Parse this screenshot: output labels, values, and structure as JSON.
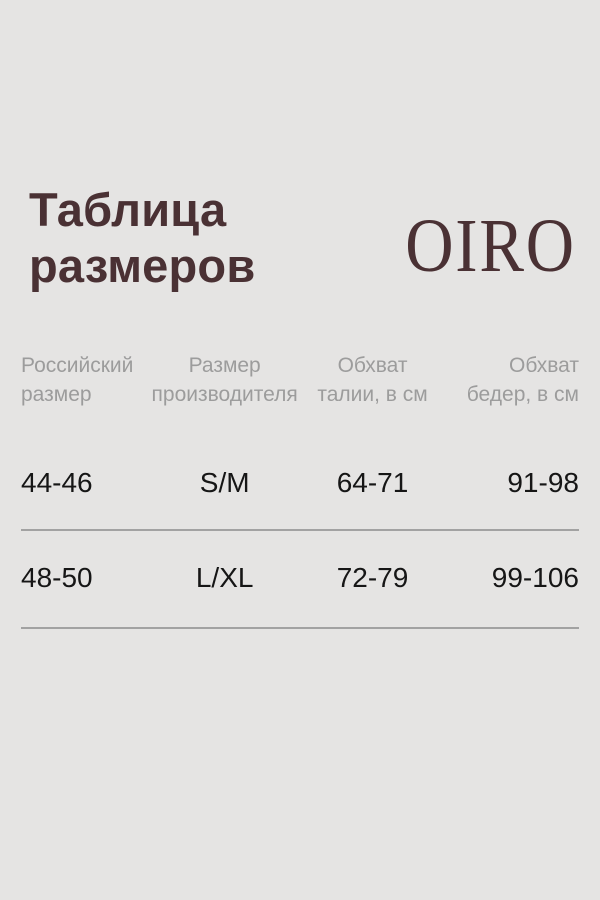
{
  "header": {
    "title_line1": "Таблица",
    "title_line2": "размеров",
    "brand": "OIRO"
  },
  "table": {
    "headers": [
      {
        "line1": "Российский",
        "line2": "размер"
      },
      {
        "line1": "Размер",
        "line2": "производителя"
      },
      {
        "line1": "Обхват",
        "line2": "талии, в см"
      },
      {
        "line1": "Обхват",
        "line2": "бедер, в см"
      }
    ],
    "rows": [
      [
        "44-46",
        "S/M",
        "64-71",
        "91-98"
      ],
      [
        "48-50",
        "L/XL",
        "72-79",
        "99-106"
      ]
    ]
  },
  "chart_data": {
    "type": "table",
    "title": "Таблица размеров",
    "brand": "OIRO",
    "columns": [
      "Российский размер",
      "Размер производителя",
      "Обхват талии, в см",
      "Обхват бедер, в см"
    ],
    "rows": [
      [
        "44-46",
        "S/M",
        "64-71",
        "91-98"
      ],
      [
        "48-50",
        "L/XL",
        "72-79",
        "99-106"
      ]
    ]
  },
  "colors": {
    "background": "#e5e4e3",
    "brand_text": "#4a3134",
    "header_text": "#9c9c9c",
    "data_text": "#161616",
    "divider": "#a2a2a2"
  }
}
